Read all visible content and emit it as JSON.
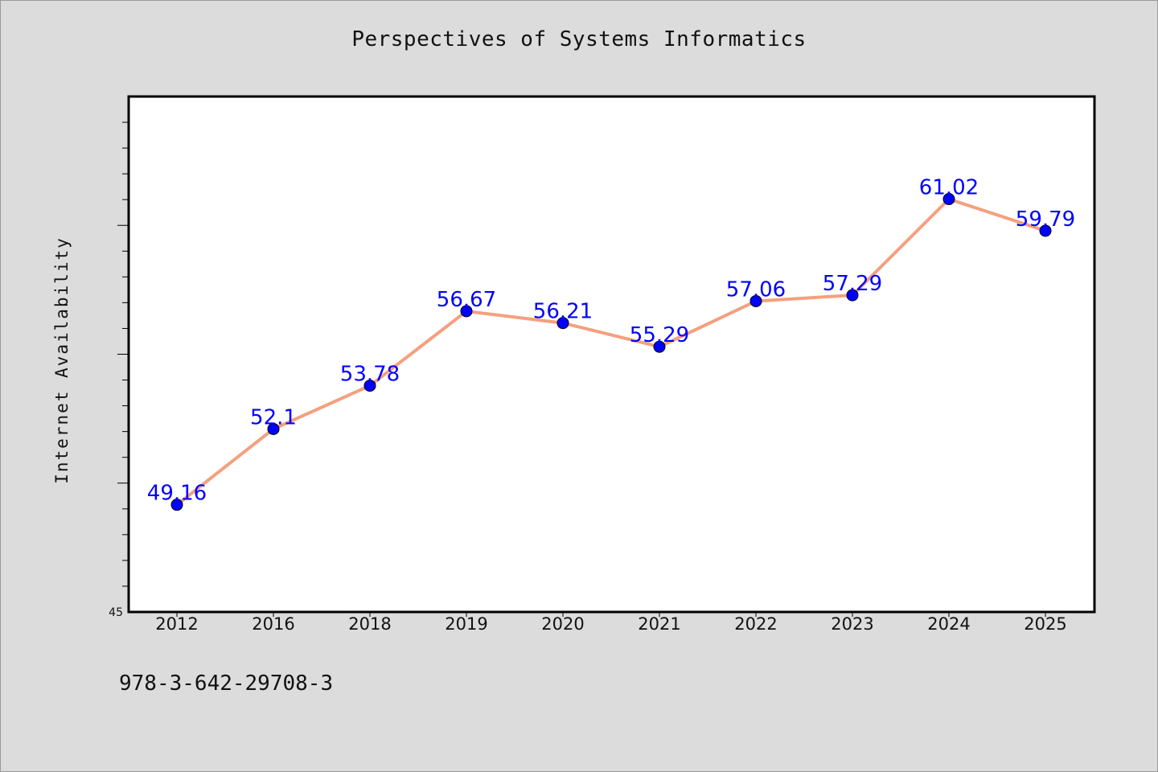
{
  "title": "Perspectives of Systems Informatics",
  "footer_text": "978-3-642-29708-3",
  "colors": {
    "background": "#dcdcdc",
    "plot_background": "#ffffff",
    "line": "#f4a07f",
    "marker": "#0000ff",
    "data_label": "#0000ff"
  },
  "chart_data": {
    "type": "line",
    "title": "Perspectives of Systems Informatics",
    "xlabel": "",
    "ylabel": "Internet Availability",
    "categories": [
      "2012",
      "2016",
      "2018",
      "2019",
      "2020",
      "2021",
      "2022",
      "2023",
      "2024",
      "2025"
    ],
    "series": [
      {
        "values": [
          49.16,
          52.1,
          53.78,
          56.67,
          56.21,
          55.29,
          57.06,
          57.29,
          61.02,
          59.79
        ]
      }
    ],
    "y_tick_labels": [
      "45"
    ],
    "ylim": [
      45,
      65
    ],
    "grid": false,
    "legend": "none"
  }
}
